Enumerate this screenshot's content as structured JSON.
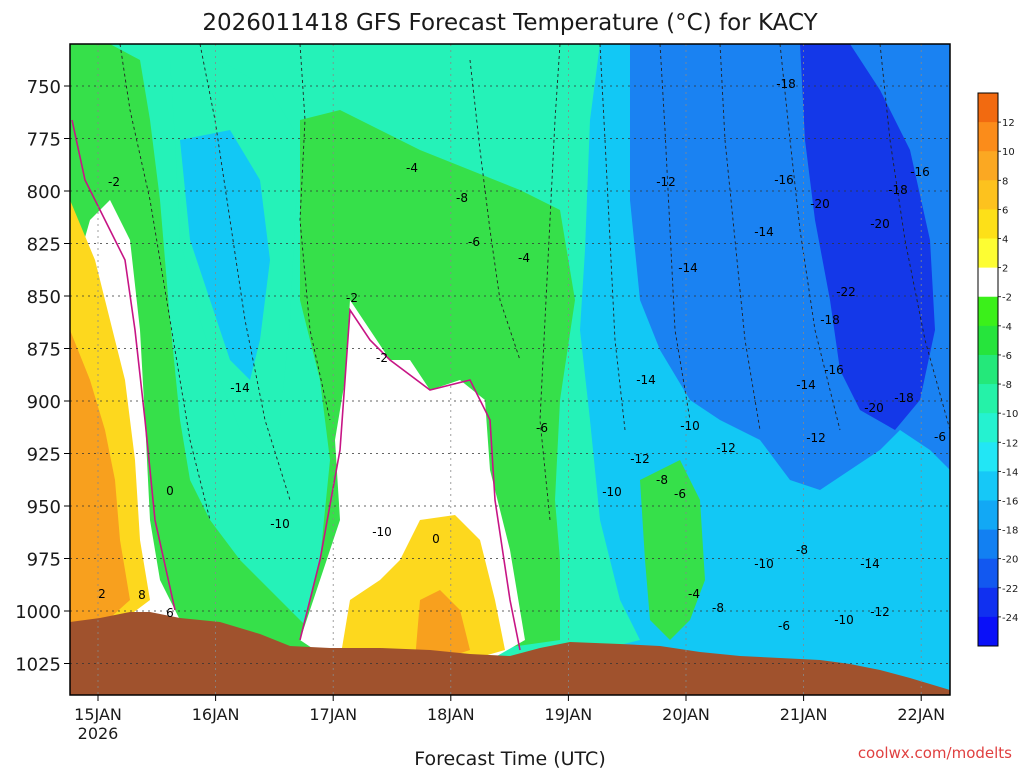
{
  "chart_data": {
    "type": "heatmap",
    "title": "2026011418 GFS Forecast Temperature (°C) for KACY",
    "xlabel": "Forecast Time (UTC)",
    "ylabel": "",
    "y_axis_reversed": true,
    "ylim": [
      1040,
      730
    ],
    "y_ticks": [
      {
        "v": 750,
        "label": "750"
      },
      {
        "v": 775,
        "label": "775"
      },
      {
        "v": 800,
        "label": "800"
      },
      {
        "v": 825,
        "label": "825"
      },
      {
        "v": 850,
        "label": "850"
      },
      {
        "v": 875,
        "label": "875"
      },
      {
        "v": 900,
        "label": "900"
      },
      {
        "v": 925,
        "label": "925"
      },
      {
        "v": 950,
        "label": "950"
      },
      {
        "v": 975,
        "label": "975"
      },
      {
        "v": 1000,
        "label": "1000"
      },
      {
        "v": 1025,
        "label": "1025"
      }
    ],
    "x_ticks": [
      {
        "label": "15JAN",
        "sub": "2026"
      },
      {
        "label": "16JAN",
        "sub": ""
      },
      {
        "label": "17JAN",
        "sub": ""
      },
      {
        "label": "18JAN",
        "sub": ""
      },
      {
        "label": "19JAN",
        "sub": ""
      },
      {
        "label": "20JAN",
        "sub": ""
      },
      {
        "label": "21JAN",
        "sub": ""
      },
      {
        "label": "22JAN",
        "sub": ""
      }
    ],
    "grid": true,
    "colorbar": {
      "labels": [
        "12",
        "10",
        "8",
        "6",
        "4",
        "2",
        "-2",
        "-4",
        "-6",
        "-8",
        "-10",
        "-12",
        "-14",
        "-16",
        "-18",
        "-20",
        "-22",
        "-24"
      ],
      "colors": [
        "#f26a10",
        "#fb8c1a",
        "#fba822",
        "#fdc21e",
        "#fde018",
        "#fdfd33",
        "#ffffff",
        "#3bf01a",
        "#26e43c",
        "#24e87a",
        "#25f2a8",
        "#25f2d0",
        "#22e6f5",
        "#16c8f7",
        "#12a8f5",
        "#1280f2",
        "#1258f0",
        "#1030f0",
        "#0a10f8"
      ]
    },
    "bands": [
      {
        "name": "surface",
        "color": "#a0522d"
      },
      {
        "name": "-20",
        "color": "#1438e8"
      },
      {
        "name": "-16",
        "color": "#1a82f2"
      },
      {
        "name": "-12",
        "color": "#12c8f5"
      },
      {
        "name": "-8",
        "color": "#25f2b8"
      },
      {
        "name": "-4",
        "color": "#36e04a"
      },
      {
        "name": "0",
        "color": "#ffffff"
      },
      {
        "name": "4",
        "color": "#fdd81e"
      },
      {
        "name": "8",
        "color": "#f8a01e"
      }
    ],
    "contour_labels": [
      "-2",
      "-4",
      "-8",
      "-6",
      "-4",
      "-12",
      "-18",
      "-16",
      "-20",
      "-18",
      "-16",
      "-14",
      "-20",
      "-14",
      "-22",
      "-18",
      "-2",
      "-14",
      "-16",
      "-14",
      "-20",
      "-18",
      "-2",
      "-10",
      "-12",
      "-10",
      "-12",
      "-14",
      "-6",
      "-12",
      "-8",
      "-10",
      "-8",
      "-6",
      "-8",
      "-10",
      "-6",
      "-4",
      "-14",
      "-10",
      "-12",
      "-10",
      "0",
      "2",
      "8",
      "6",
      "0",
      "-6",
      "-16"
    ],
    "footer_url": "coolwx.com/modelts"
  }
}
